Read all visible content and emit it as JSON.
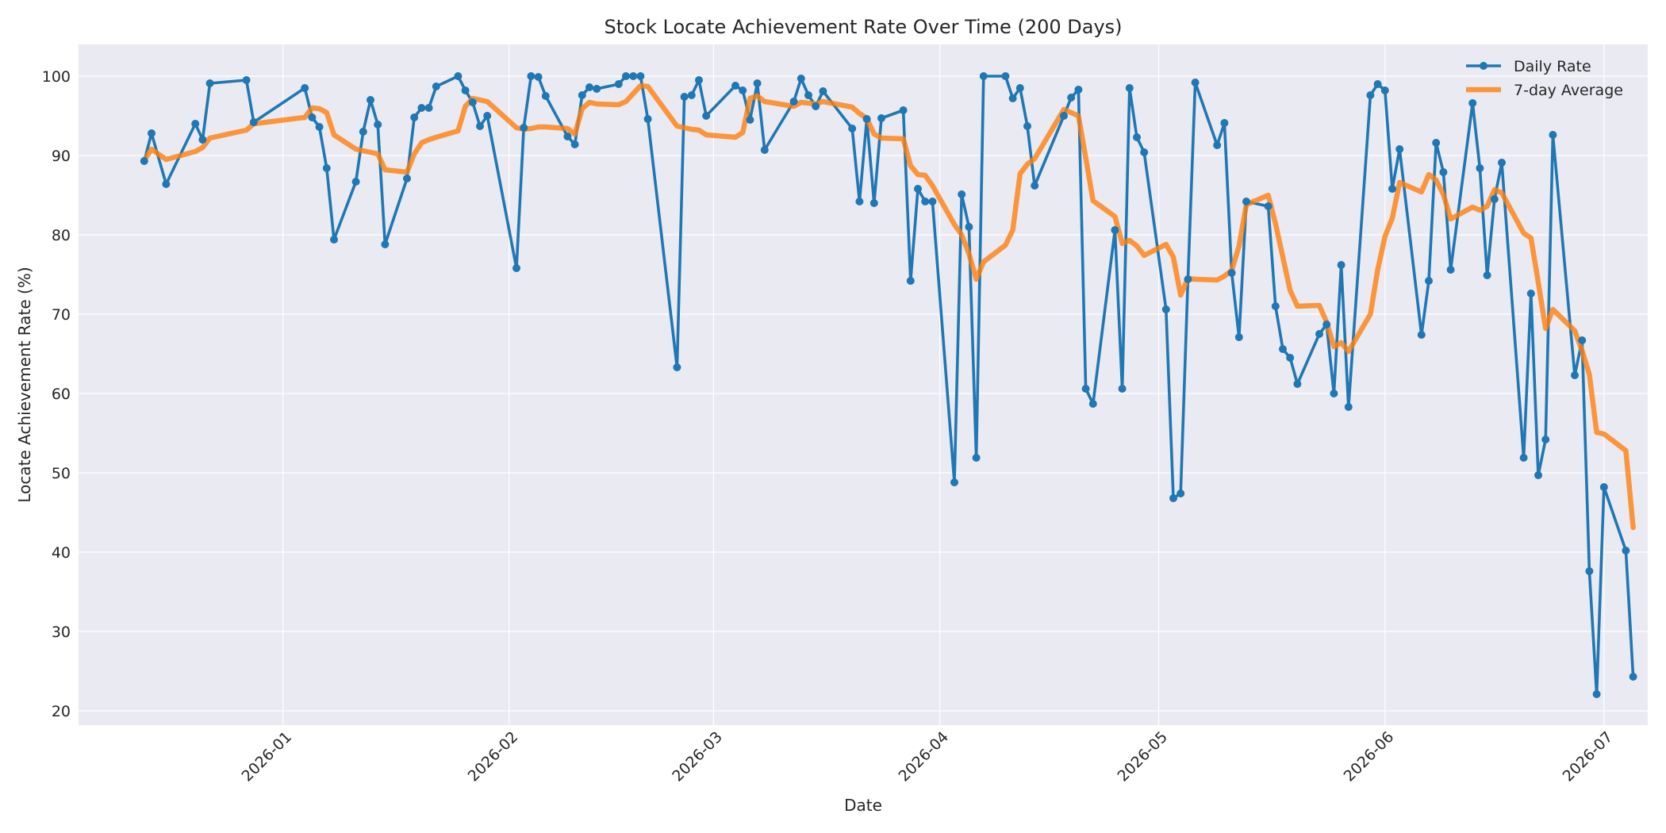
{
  "chart_data": {
    "type": "line",
    "title": "Stock Locate Achievement Rate Over Time (200 Days)",
    "xlabel": "Date",
    "ylabel": "Locate Achievement Rate (%)",
    "xlim": [
      "2025-12-04",
      "2026-07-07"
    ],
    "ylim": [
      18.2,
      104.0
    ],
    "yticks": [
      20,
      30,
      40,
      50,
      60,
      70,
      80,
      90,
      100
    ],
    "xticks": [
      {
        "date": "2026-01-01",
        "label": "2026-01"
      },
      {
        "date": "2026-02-01",
        "label": "2026-02"
      },
      {
        "date": "2026-03-01",
        "label": "2026-03"
      },
      {
        "date": "2026-04-01",
        "label": "2026-04"
      },
      {
        "date": "2026-05-01",
        "label": "2026-05"
      },
      {
        "date": "2026-06-01",
        "label": "2026-06"
      },
      {
        "date": "2026-07-01",
        "label": "2026-07"
      }
    ],
    "grid": true,
    "legend": "top-right",
    "colors": {
      "daily": "#1f77b4",
      "average": "#ff7f0e",
      "background": "#eaeaf2",
      "grid": "#ffffff"
    },
    "series": [
      {
        "name": "Daily Rate",
        "style": "line-with-markers",
        "points": [
          [
            "2025-12-13",
            89.3
          ],
          [
            "2025-12-14",
            92.8
          ],
          [
            "2025-12-16",
            86.4
          ],
          [
            "2025-12-20",
            94.0
          ],
          [
            "2025-12-21",
            92.0
          ],
          [
            "2025-12-22",
            99.1
          ],
          [
            "2025-12-27",
            99.5
          ],
          [
            "2025-12-28",
            94.2
          ],
          [
            "2026-01-04",
            98.5
          ],
          [
            "2026-01-05",
            94.8
          ],
          [
            "2026-01-06",
            93.6
          ],
          [
            "2026-01-07",
            88.4
          ],
          [
            "2026-01-08",
            79.4
          ],
          [
            "2026-01-11",
            86.7
          ],
          [
            "2026-01-12",
            93.0
          ],
          [
            "2026-01-13",
            97.0
          ],
          [
            "2026-01-14",
            93.9
          ],
          [
            "2026-01-15",
            78.8
          ],
          [
            "2026-01-18",
            87.1
          ],
          [
            "2026-01-19",
            94.8
          ],
          [
            "2026-01-20",
            96.0
          ],
          [
            "2026-01-21",
            96.0
          ],
          [
            "2026-01-22",
            98.7
          ],
          [
            "2026-01-25",
            100.0
          ],
          [
            "2026-01-26",
            98.2
          ],
          [
            "2026-01-27",
            96.7
          ],
          [
            "2026-01-28",
            93.7
          ],
          [
            "2026-01-29",
            95.0
          ],
          [
            "2026-02-02",
            75.8
          ],
          [
            "2026-02-03",
            93.5
          ],
          [
            "2026-02-04",
            100.0
          ],
          [
            "2026-02-05",
            99.9
          ],
          [
            "2026-02-06",
            97.5
          ],
          [
            "2026-02-09",
            92.4
          ],
          [
            "2026-02-10",
            91.4
          ],
          [
            "2026-02-11",
            97.6
          ],
          [
            "2026-02-12",
            98.6
          ],
          [
            "2026-02-13",
            98.4
          ],
          [
            "2026-02-16",
            99.0
          ],
          [
            "2026-02-17",
            100.0
          ],
          [
            "2026-02-18",
            100.0
          ],
          [
            "2026-02-19",
            100.0
          ],
          [
            "2026-02-20",
            94.6
          ],
          [
            "2026-02-24",
            63.3
          ],
          [
            "2026-02-25",
            97.4
          ],
          [
            "2026-02-26",
            97.6
          ],
          [
            "2026-02-27",
            99.5
          ],
          [
            "2026-02-28",
            95.0
          ],
          [
            "2026-03-04",
            98.8
          ],
          [
            "2026-03-05",
            98.2
          ],
          [
            "2026-03-06",
            94.5
          ],
          [
            "2026-03-07",
            99.1
          ],
          [
            "2026-03-08",
            90.7
          ],
          [
            "2026-03-12",
            96.8
          ],
          [
            "2026-03-13",
            99.7
          ],
          [
            "2026-03-14",
            97.6
          ],
          [
            "2026-03-15",
            96.2
          ],
          [
            "2026-03-16",
            98.1
          ],
          [
            "2026-03-20",
            93.4
          ],
          [
            "2026-03-21",
            84.2
          ],
          [
            "2026-03-22",
            94.6
          ],
          [
            "2026-03-23",
            84.0
          ],
          [
            "2026-03-24",
            94.7
          ],
          [
            "2026-03-27",
            95.7
          ],
          [
            "2026-03-28",
            74.2
          ],
          [
            "2026-03-29",
            85.8
          ],
          [
            "2026-03-30",
            84.2
          ],
          [
            "2026-03-31",
            84.2
          ],
          [
            "2026-04-03",
            48.8
          ],
          [
            "2026-04-04",
            85.1
          ],
          [
            "2026-04-05",
            81.0
          ],
          [
            "2026-04-06",
            51.9
          ],
          [
            "2026-04-07",
            100.0
          ],
          [
            "2026-04-10",
            100.0
          ],
          [
            "2026-04-11",
            97.2
          ],
          [
            "2026-04-12",
            98.5
          ],
          [
            "2026-04-13",
            93.7
          ],
          [
            "2026-04-14",
            86.2
          ],
          [
            "2026-04-18",
            95.0
          ],
          [
            "2026-04-19",
            97.3
          ],
          [
            "2026-04-20",
            98.3
          ],
          [
            "2026-04-21",
            60.6
          ],
          [
            "2026-04-22",
            58.7
          ],
          [
            "2026-04-25",
            80.6
          ],
          [
            "2026-04-26",
            60.6
          ],
          [
            "2026-04-27",
            98.5
          ],
          [
            "2026-04-28",
            92.3
          ],
          [
            "2026-04-29",
            90.4
          ],
          [
            "2026-05-02",
            70.6
          ],
          [
            "2026-05-03",
            46.8
          ],
          [
            "2026-05-04",
            47.4
          ],
          [
            "2026-05-05",
            74.4
          ],
          [
            "2026-05-06",
            99.2
          ],
          [
            "2026-05-09",
            91.3
          ],
          [
            "2026-05-10",
            94.1
          ],
          [
            "2026-05-11",
            75.2
          ],
          [
            "2026-05-12",
            67.1
          ],
          [
            "2026-05-13",
            84.2
          ],
          [
            "2026-05-16",
            83.6
          ],
          [
            "2026-05-17",
            71.0
          ],
          [
            "2026-05-18",
            65.6
          ],
          [
            "2026-05-19",
            64.5
          ],
          [
            "2026-05-20",
            61.2
          ],
          [
            "2026-05-23",
            67.5
          ],
          [
            "2026-05-24",
            68.7
          ],
          [
            "2026-05-25",
            60.0
          ],
          [
            "2026-05-26",
            76.2
          ],
          [
            "2026-05-27",
            58.3
          ],
          [
            "2026-05-30",
            97.6
          ],
          [
            "2026-05-31",
            99.0
          ],
          [
            "2026-06-01",
            98.2
          ],
          [
            "2026-06-02",
            85.8
          ],
          [
            "2026-06-03",
            90.8
          ],
          [
            "2026-06-06",
            67.4
          ],
          [
            "2026-06-07",
            74.2
          ],
          [
            "2026-06-08",
            91.6
          ],
          [
            "2026-06-09",
            87.9
          ],
          [
            "2026-06-10",
            75.6
          ],
          [
            "2026-06-13",
            96.6
          ],
          [
            "2026-06-14",
            88.4
          ],
          [
            "2026-06-15",
            74.9
          ],
          [
            "2026-06-16",
            84.5
          ],
          [
            "2026-06-17",
            89.1
          ],
          [
            "2026-06-20",
            51.9
          ],
          [
            "2026-06-21",
            72.6
          ],
          [
            "2026-06-22",
            49.7
          ],
          [
            "2026-06-23",
            54.2
          ],
          [
            "2026-06-24",
            92.6
          ],
          [
            "2026-06-27",
            62.3
          ],
          [
            "2026-06-28",
            66.7
          ],
          [
            "2026-06-29",
            37.6
          ],
          [
            "2026-06-30",
            22.1
          ],
          [
            "2026-07-01",
            48.2
          ],
          [
            "2026-07-04",
            40.2
          ],
          [
            "2026-07-05",
            24.3
          ]
        ]
      },
      {
        "name": "7-day Average",
        "style": "thick-line",
        "points": [
          [
            "2025-12-13",
            89.4
          ],
          [
            "2025-12-14",
            90.8
          ],
          [
            "2025-12-16",
            89.5
          ],
          [
            "2025-12-20",
            90.5
          ],
          [
            "2025-12-21",
            91.0
          ],
          [
            "2025-12-22",
            92.2
          ],
          [
            "2025-12-27",
            93.2
          ],
          [
            "2025-12-28",
            94.0
          ],
          [
            "2026-01-04",
            94.8
          ],
          [
            "2026-01-05",
            96.0
          ],
          [
            "2026-01-06",
            95.9
          ],
          [
            "2026-01-07",
            95.4
          ],
          [
            "2026-01-08",
            92.6
          ],
          [
            "2026-01-11",
            90.8
          ],
          [
            "2026-01-12",
            90.6
          ],
          [
            "2026-01-13",
            90.4
          ],
          [
            "2026-01-14",
            90.2
          ],
          [
            "2026-01-15",
            88.2
          ],
          [
            "2026-01-18",
            87.9
          ],
          [
            "2026-01-19",
            90.2
          ],
          [
            "2026-01-20",
            91.6
          ],
          [
            "2026-01-21",
            92.0
          ],
          [
            "2026-01-22",
            92.3
          ],
          [
            "2026-01-25",
            93.1
          ],
          [
            "2026-01-26",
            96.2
          ],
          [
            "2026-01-27",
            97.2
          ],
          [
            "2026-01-28",
            97.0
          ],
          [
            "2026-01-29",
            96.8
          ],
          [
            "2026-02-02",
            93.5
          ],
          [
            "2026-02-03",
            93.3
          ],
          [
            "2026-02-04",
            93.4
          ],
          [
            "2026-02-05",
            93.6
          ],
          [
            "2026-02-06",
            93.6
          ],
          [
            "2026-02-09",
            93.4
          ],
          [
            "2026-02-10",
            92.7
          ],
          [
            "2026-02-11",
            95.9
          ],
          [
            "2026-02-12",
            96.7
          ],
          [
            "2026-02-13",
            96.5
          ],
          [
            "2026-02-16",
            96.4
          ],
          [
            "2026-02-17",
            96.8
          ],
          [
            "2026-02-18",
            97.8
          ],
          [
            "2026-02-19",
            98.8
          ],
          [
            "2026-02-20",
            98.7
          ],
          [
            "2026-02-24",
            93.7
          ],
          [
            "2026-02-25",
            93.5
          ],
          [
            "2026-02-26",
            93.3
          ],
          [
            "2026-02-27",
            93.2
          ],
          [
            "2026-02-28",
            92.6
          ],
          [
            "2026-03-04",
            92.3
          ],
          [
            "2026-03-05",
            92.9
          ],
          [
            "2026-03-06",
            97.2
          ],
          [
            "2026-03-07",
            97.5
          ],
          [
            "2026-03-08",
            96.8
          ],
          [
            "2026-03-12",
            96.2
          ],
          [
            "2026-03-13",
            96.7
          ],
          [
            "2026-03-14",
            96.6
          ],
          [
            "2026-03-15",
            96.5
          ],
          [
            "2026-03-16",
            96.8
          ],
          [
            "2026-03-20",
            96.1
          ],
          [
            "2026-03-21",
            95.3
          ],
          [
            "2026-03-22",
            94.7
          ],
          [
            "2026-03-23",
            92.7
          ],
          [
            "2026-03-24",
            92.2
          ],
          [
            "2026-03-27",
            92.1
          ],
          [
            "2026-03-28",
            88.7
          ],
          [
            "2026-03-29",
            87.6
          ],
          [
            "2026-03-30",
            87.5
          ],
          [
            "2026-03-31",
            86.2
          ],
          [
            "2026-04-03",
            81.3
          ],
          [
            "2026-04-04",
            80.0
          ],
          [
            "2026-04-05",
            77.6
          ],
          [
            "2026-04-06",
            74.4
          ],
          [
            "2026-04-07",
            76.6
          ],
          [
            "2026-04-10",
            78.7
          ],
          [
            "2026-04-11",
            80.6
          ],
          [
            "2026-04-12",
            87.7
          ],
          [
            "2026-04-13",
            88.9
          ],
          [
            "2026-04-14",
            89.6
          ],
          [
            "2026-04-18",
            95.8
          ],
          [
            "2026-04-19",
            95.4
          ],
          [
            "2026-04-20",
            95.0
          ],
          [
            "2026-04-21",
            89.7
          ],
          [
            "2026-04-22",
            84.3
          ],
          [
            "2026-04-25",
            82.3
          ],
          [
            "2026-04-26",
            78.9
          ],
          [
            "2026-04-27",
            79.3
          ],
          [
            "2026-04-28",
            78.6
          ],
          [
            "2026-04-29",
            77.4
          ],
          [
            "2026-05-02",
            78.8
          ],
          [
            "2026-05-03",
            77.2
          ],
          [
            "2026-05-04",
            72.4
          ],
          [
            "2026-05-05",
            74.5
          ],
          [
            "2026-05-06",
            74.4
          ],
          [
            "2026-05-09",
            74.3
          ],
          [
            "2026-05-10",
            74.8
          ],
          [
            "2026-05-11",
            75.5
          ],
          [
            "2026-05-12",
            78.6
          ],
          [
            "2026-05-13",
            83.8
          ],
          [
            "2026-05-16",
            85.0
          ],
          [
            "2026-05-17",
            81.4
          ],
          [
            "2026-05-18",
            77.2
          ],
          [
            "2026-05-19",
            73.0
          ],
          [
            "2026-05-20",
            71.0
          ],
          [
            "2026-05-23",
            71.1
          ],
          [
            "2026-05-24",
            69.0
          ],
          [
            "2026-05-25",
            65.9
          ],
          [
            "2026-05-26",
            66.4
          ],
          [
            "2026-05-27",
            65.3
          ],
          [
            "2026-05-30",
            70.0
          ],
          [
            "2026-05-31",
            75.6
          ],
          [
            "2026-06-01",
            79.8
          ],
          [
            "2026-06-02",
            82.1
          ],
          [
            "2026-06-03",
            86.6
          ],
          [
            "2026-06-06",
            85.4
          ],
          [
            "2026-06-07",
            87.6
          ],
          [
            "2026-06-08",
            86.9
          ],
          [
            "2026-06-09",
            85.1
          ],
          [
            "2026-06-10",
            82.0
          ],
          [
            "2026-06-13",
            83.5
          ],
          [
            "2026-06-14",
            83.1
          ],
          [
            "2026-06-15",
            83.6
          ],
          [
            "2026-06-16",
            85.7
          ],
          [
            "2026-06-17",
            85.3
          ],
          [
            "2026-06-20",
            80.2
          ],
          [
            "2026-06-21",
            79.6
          ],
          [
            "2026-06-22",
            74.0
          ],
          [
            "2026-06-23",
            68.2
          ],
          [
            "2026-06-24",
            70.6
          ],
          [
            "2026-06-27",
            67.9
          ],
          [
            "2026-06-28",
            65.4
          ],
          [
            "2026-06-29",
            62.4
          ],
          [
            "2026-06-30",
            55.1
          ],
          [
            "2026-07-01",
            54.9
          ],
          [
            "2026-07-04",
            52.8
          ],
          [
            "2026-07-05",
            43.1
          ]
        ]
      }
    ]
  }
}
